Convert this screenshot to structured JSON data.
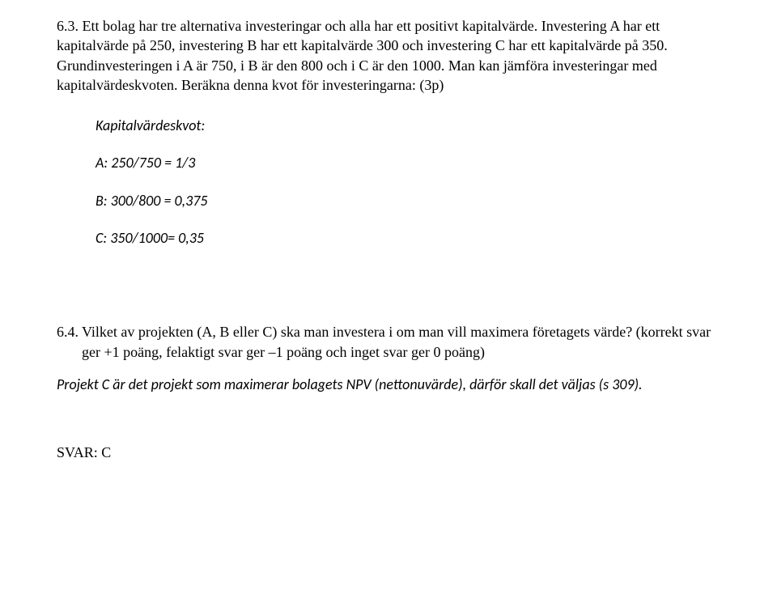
{
  "q63": {
    "text": "6.3. Ett bolag har tre alternativa investeringar och alla har ett positivt kapitalvärde. Investering A har ett kapitalvärde på 250, investering B har ett kapitalvärde 300 och investering C har ett kapitalvärde på 350. Grundinvesteringen i A är 750, i B är den 800 och i C är den 1000. Man kan jämföra investeringar med kapitalvärdeskvoten. Beräkna denna kvot för investeringarna: (3p)"
  },
  "calc": {
    "heading": "Kapitalvärdeskvot:",
    "a": "A: 250/750 = 1/3",
    "b": "B: 300/800 = 0,375",
    "c": "C: 350/1000=  0,35"
  },
  "q64": {
    "num": "6.4. ",
    "body": "Vilket av projekten (A, B eller C) ska man investera i om man vill maximera företagets värde? (korrekt svar ger +1 poäng, felaktigt svar ger –1 poäng och inget svar ger 0 poäng)"
  },
  "answer": "Projekt C är det projekt som maximerar bolagets NPV (nettonuvärde), därför skall det väljas (s 309).",
  "svar": "SVAR: C"
}
